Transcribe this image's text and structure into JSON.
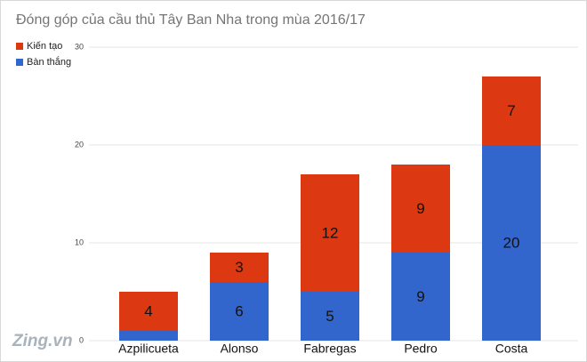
{
  "chart_data": {
    "type": "stacked_bar",
    "title": "Đóng góp của cầu thủ Tây Ban Nha trong mùa 2016/17",
    "categories": [
      "Azpilicueta",
      "Alonso",
      "Fabregas",
      "Pedro",
      "Costa"
    ],
    "series": [
      {
        "name": "Bàn thắng",
        "color": "#3366cc",
        "values": [
          1,
          6,
          5,
          9,
          20
        ]
      },
      {
        "name": "Kiến tạo",
        "color": "#dc3912",
        "values": [
          4,
          3,
          12,
          9,
          7
        ]
      }
    ],
    "ylim": [
      0,
      30
    ],
    "yticks": [
      0,
      10,
      20,
      30
    ],
    "grid": true,
    "legend": "top-left",
    "watermark": "Zing.vn"
  }
}
